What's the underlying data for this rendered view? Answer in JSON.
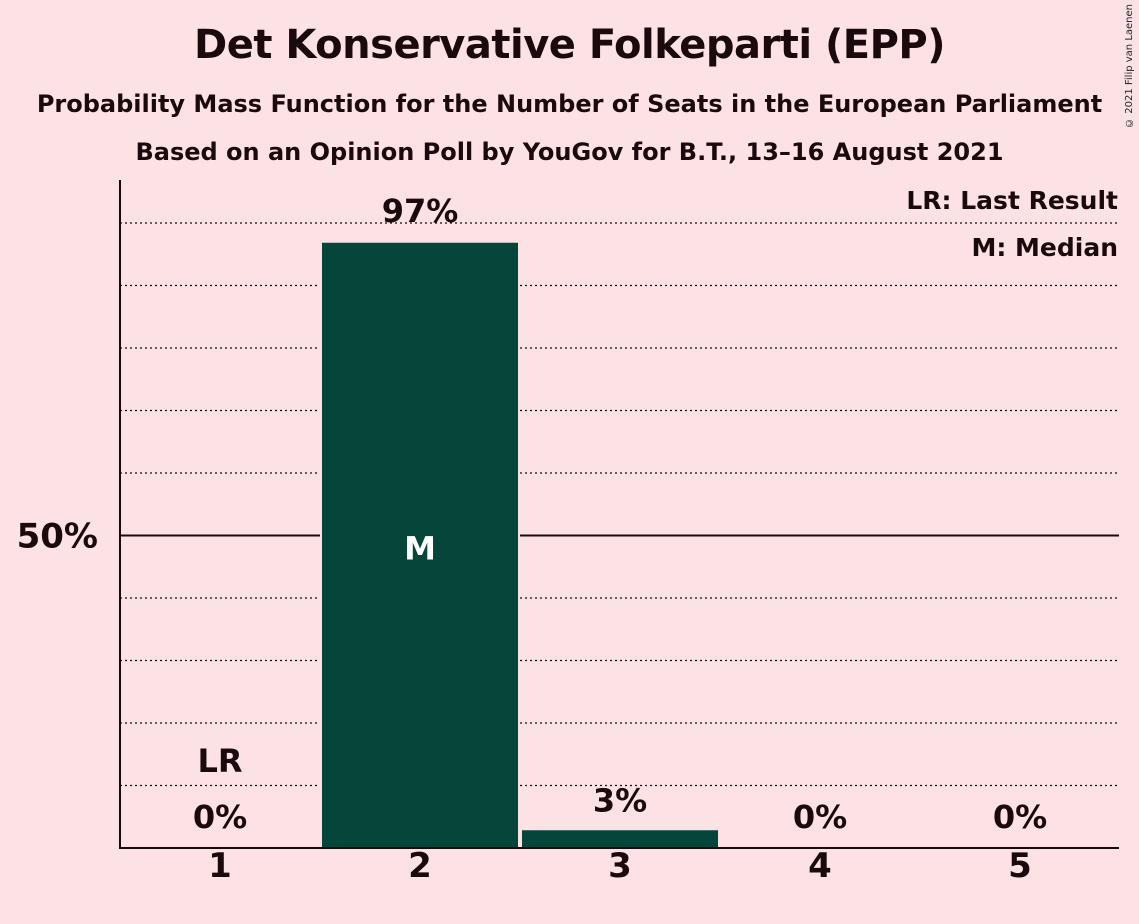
{
  "title": "Det Konservative Folkeparti (EPP)",
  "subtitle": "Probability Mass Function for the Number of Seats in the European Parliament",
  "subtitle2": "Based on an Opinion Poll by YouGov for B.T., 13–16 August 2021",
  "copyright": "© 2021 Filip van Laenen",
  "legend": {
    "last_result": "LR: Last Result",
    "median": "M: Median"
  },
  "colors": {
    "background": "#FDE2E5",
    "bar": "#064539",
    "text": "#1a0a0d"
  },
  "chart_data": {
    "type": "bar",
    "categories": [
      "1",
      "2",
      "3",
      "4",
      "5"
    ],
    "values": [
      0,
      97,
      3,
      0,
      0
    ],
    "data_labels": [
      "0%",
      "97%",
      "3%",
      "0%",
      "0%"
    ],
    "ytick_labels": [
      "50%"
    ],
    "ylim": [
      0,
      106
    ],
    "y_major_tick": 50,
    "y_minor_step": 10,
    "last_result_category": "1",
    "last_result_label": "LR",
    "median_category": "2",
    "median_label": "M"
  }
}
